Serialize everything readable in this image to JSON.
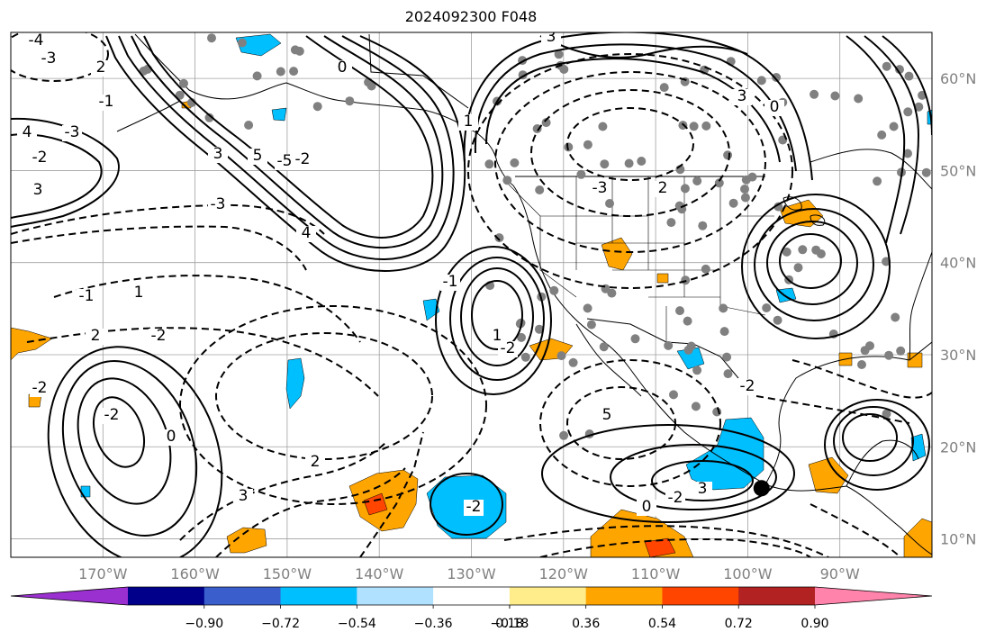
{
  "title": "2024092300 F048",
  "map": {
    "lon_range": [
      -180,
      -80
    ],
    "lat_range": [
      8,
      65
    ],
    "lon_ticks": [
      "170°W",
      "160°W",
      "150°W",
      "140°W",
      "130°W",
      "120°W",
      "110°W",
      "100°W",
      "90°W"
    ],
    "lat_ticks": [
      "60°N",
      "50°N",
      "40°N",
      "30°N",
      "20°N",
      "10°N"
    ],
    "grid": "on",
    "contour_labels": [
      "-4",
      "-3",
      "3",
      "-2",
      "2",
      "-1",
      "1",
      "0",
      "4",
      "-3",
      "3",
      "5",
      "-5",
      "-2",
      "3",
      "-3",
      "4",
      "-1",
      "1",
      "2",
      "-2",
      "-3",
      "2",
      "3",
      "0",
      "-2",
      "-1",
      "1",
      "-2",
      "-2",
      "0",
      "2",
      "3",
      "-2",
      "0",
      "-2",
      "3",
      "-2",
      "5"
    ],
    "marker": {
      "lon": -98.5,
      "lat": 15.5,
      "color": "#000000"
    },
    "station_color": "#808080"
  },
  "colorbar": {
    "ticks": [
      "−0.90",
      "−0.72",
      "−0.54",
      "−0.36",
      "−0.18",
      "0.18",
      "0.36",
      "0.54",
      "0.72",
      "0.90"
    ],
    "colors": [
      "#9b30d0",
      "#00008b",
      "#3a5fcd",
      "#00bfff",
      "#b0e2ff",
      "#ffffff",
      "#ffec8b",
      "#ffa500",
      "#ff4500",
      "#b22222",
      "#ff83aa"
    ]
  }
}
